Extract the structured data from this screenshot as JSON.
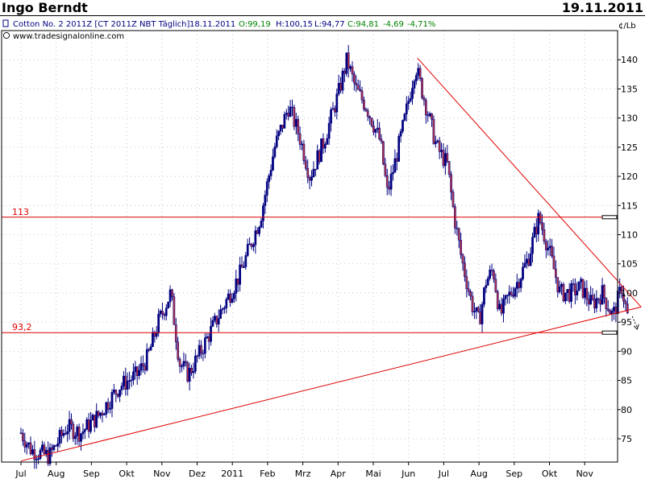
{
  "header": {
    "author": "Ingo Berndt",
    "date": "19.11.2011"
  },
  "info": {
    "instrument": "Cotton No. 2 2011Z [CT 2011Z NBT  Täglich]",
    "date": "18.11.2011",
    "open": "O:99,19",
    "high": "H:100,15",
    "low": "L:94,77",
    "close": "C:94,81",
    "change": "-4,69",
    "change_pct": "-4,71%",
    "source": "www.tradesignalonline.com",
    "colors": {
      "neutral": "#000080",
      "positive": "#008000"
    }
  },
  "chart_data": {
    "type": "line",
    "title": "",
    "unit_label": "¢/Lb",
    "x_labels": [
      "Jul",
      "Aug",
      "Sep",
      "Okt",
      "Nov",
      "Dez",
      "2011",
      "Feb",
      "Mrz",
      "Apr",
      "Mai",
      "Jun",
      "Jul",
      "Aug",
      "Sep",
      "Okt",
      "Nov"
    ],
    "y_ticks": [
      75,
      80,
      85,
      90,
      95,
      100,
      105,
      110,
      115,
      120,
      125,
      130,
      135,
      140
    ],
    "ylim": [
      71,
      145
    ],
    "grid": true,
    "series": [
      {
        "values": [
          [
            0,
            76
          ],
          [
            0.3,
            73
          ],
          [
            0.8,
            72
          ],
          [
            1.3,
            77
          ],
          [
            1.7,
            76
          ],
          [
            2.2,
            79
          ],
          [
            2.8,
            84
          ],
          [
            3.3,
            86
          ],
          [
            3.6,
            89
          ],
          [
            3.9,
            95
          ],
          [
            4.25,
            100
          ],
          [
            4.5,
            88
          ],
          [
            4.75,
            86
          ],
          [
            5.1,
            90
          ],
          [
            5.6,
            96
          ],
          [
            6.2,
            103
          ],
          [
            6.8,
            113
          ],
          [
            7.2,
            125
          ],
          [
            7.6,
            132
          ],
          [
            7.9,
            127
          ],
          [
            8.2,
            120
          ],
          [
            8.6,
            126
          ],
          [
            9.0,
            134
          ],
          [
            9.25,
            140
          ],
          [
            9.5,
            135
          ],
          [
            9.8,
            132
          ],
          [
            10.2,
            126
          ],
          [
            10.4,
            117
          ],
          [
            10.6,
            122
          ],
          [
            10.9,
            130
          ],
          [
            11.2,
            139
          ],
          [
            11.5,
            132
          ],
          [
            11.8,
            125
          ],
          [
            12.1,
            122
          ],
          [
            12.3,
            113
          ],
          [
            12.5,
            106
          ],
          [
            12.8,
            98
          ],
          [
            13.0,
            95
          ],
          [
            13.2,
            102
          ],
          [
            13.4,
            104
          ],
          [
            13.6,
            96
          ],
          [
            13.8,
            99
          ],
          [
            14.1,
            102
          ],
          [
            14.4,
            106
          ],
          [
            14.7,
            113
          ],
          [
            15.0,
            107
          ],
          [
            15.3,
            100
          ],
          [
            15.6,
            100
          ],
          [
            15.9,
            101
          ],
          [
            16.2,
            98
          ],
          [
            16.5,
            100
          ],
          [
            16.8,
            96
          ],
          [
            17.05,
            101
          ],
          [
            17.25,
            95
          ]
        ]
      }
    ],
    "annotations": {
      "horizontal_lines": [
        {
          "label": "113",
          "value": 113
        },
        {
          "label": "93,2",
          "value": 93.2
        }
      ],
      "trendlines": [
        {
          "from": [
            0,
            71.2
          ],
          "to": [
            17.6,
            97.6
          ]
        },
        {
          "from": [
            11.25,
            140.3
          ],
          "to": [
            17.6,
            97.6
          ]
        }
      ]
    },
    "colors": {
      "candle": "#000080",
      "lines": "#e00000",
      "grid": "#b8b8b8"
    }
  }
}
